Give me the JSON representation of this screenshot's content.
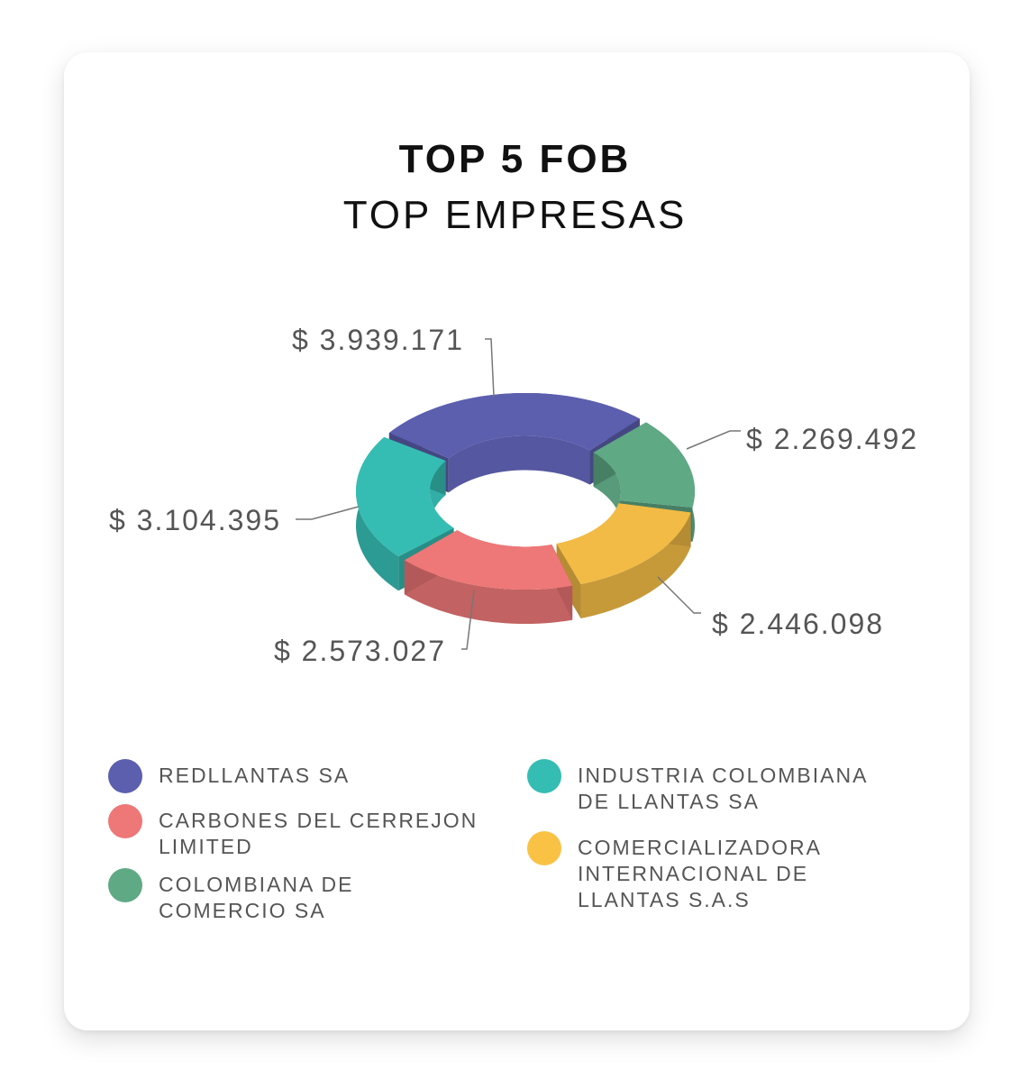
{
  "chart_data": {
    "type": "pie",
    "title": "TOP 5 FOB",
    "subtitle": "TOP EMPRESAS",
    "series": [
      {
        "name": "REDLLANTAS SA",
        "value": 3939171,
        "label": "$ 3.939.171",
        "color": "#5C5FAE"
      },
      {
        "name": "COLOMBIANA DE COMERCIO SA",
        "value": 2269492,
        "label": "$ 2.269.492",
        "color": "#5FA985"
      },
      {
        "name": "COMERCIALIZADORA INTERNACIONAL DE LLANTAS S.A.S",
        "value": 2446098,
        "label": "$ 2.446.098",
        "color": "#F1BB45"
      },
      {
        "name": "CARBONES DEL CERREJON LIMITED",
        "value": 2573027,
        "label": "$ 2.573.027",
        "color": "#EE7777"
      },
      {
        "name": "INDUSTRIA COLOMBIANA DE LLANTAS SA",
        "value": 3104395,
        "label": "$ 3.104.395",
        "color": "#35BDB3"
      }
    ],
    "legend_position": "bottom"
  },
  "legend": [
    {
      "label": "REDLLANTAS SA",
      "color": "#5C5FAE"
    },
    {
      "label": "CARBONES DEL CERREJON LIMITED",
      "color": "#EE7777"
    },
    {
      "label": "COLOMBIANA DE COMERCIO SA",
      "color": "#5FA985"
    },
    {
      "label": "INDUSTRIA COLOMBIANA DE LLANTAS SA",
      "color": "#35BDB3"
    },
    {
      "label": "COMERCIALIZADORA INTERNACIONAL DE LLANTAS S.A.S",
      "color": "#F9C245"
    }
  ]
}
